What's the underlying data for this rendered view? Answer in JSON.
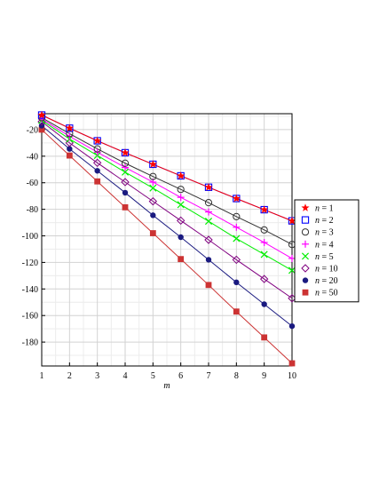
{
  "chart_data": {
    "type": "line",
    "xlabel": "m",
    "ylabel": "",
    "x": [
      1,
      2,
      3,
      4,
      5,
      6,
      7,
      8,
      9,
      10
    ],
    "xlim": [
      1,
      10
    ],
    "ylim": [
      -198,
      -8
    ],
    "x_ticks": [
      "1",
      "2",
      "3",
      "4",
      "5",
      "6",
      "7",
      "8",
      "9",
      "10"
    ],
    "y_ticks": [
      -20,
      -40,
      -60,
      -80,
      -100,
      -120,
      -140,
      -160,
      -180
    ],
    "y_tick_labels": [
      "-20",
      "-40",
      "-60",
      "-80",
      "-100",
      "-120",
      "-140",
      "-160",
      "-180"
    ],
    "grid": true,
    "legend_position": "right",
    "series": [
      {
        "name": "n = 1",
        "var": "n",
        "eq": " = 1",
        "color": "#ff0000",
        "marker": "star",
        "values": [
          -9,
          -18.9,
          -28.4,
          -37.4,
          -46.1,
          -54.8,
          -63.4,
          -71.9,
          -80.3,
          -88.7
        ]
      },
      {
        "name": "n = 2",
        "var": "n",
        "eq": " = 2",
        "color": "#0000ff",
        "marker": "square-open",
        "values": [
          -9,
          -18.9,
          -28.4,
          -37.4,
          -46.1,
          -54.8,
          -63.4,
          -71.9,
          -80.3,
          -88.7
        ]
      },
      {
        "name": "n = 3",
        "var": "n",
        "eq": " = 3",
        "color": "#333333",
        "marker": "circle-open",
        "values": [
          -11,
          -23,
          -34.5,
          -45.3,
          -55.3,
          -65,
          -75,
          -85.5,
          -95.5,
          -106.5
        ]
      },
      {
        "name": "n = 4",
        "var": "n",
        "eq": " = 4",
        "color": "#ff00ff",
        "marker": "plus",
        "values": [
          -12,
          -25,
          -37,
          -48.5,
          -59.5,
          -71,
          -82,
          -93.5,
          -105,
          -117
        ]
      },
      {
        "name": "n = 5",
        "var": "n",
        "eq": " = 5",
        "color": "#00ee00",
        "marker": "x",
        "values": [
          -13,
          -27,
          -39.5,
          -52,
          -64,
          -76.5,
          -89,
          -102,
          -114,
          -126
        ]
      },
      {
        "name": "n = 10",
        "var": "n",
        "eq": " = 10",
        "color": "#800080",
        "marker": "diamond-open",
        "values": [
          -14,
          -30,
          -45,
          -59.5,
          -74,
          -88.5,
          -103,
          -118,
          -132.5,
          -147
        ]
      },
      {
        "name": "n = 20",
        "var": "n",
        "eq": " = 20",
        "color": "#1a1a80",
        "marker": "circle-filled",
        "values": [
          -17,
          -34.5,
          -51,
          -67.5,
          -84.5,
          -101,
          -118,
          -135,
          -151.5,
          -168
        ]
      },
      {
        "name": "n = 50",
        "var": "n",
        "eq": " = 50",
        "color": "#cc3333",
        "marker": "square-filled",
        "values": [
          -20,
          -39.5,
          -59,
          -78.5,
          -98,
          -117.5,
          -137,
          -157,
          -176.5,
          -196
        ]
      }
    ]
  }
}
